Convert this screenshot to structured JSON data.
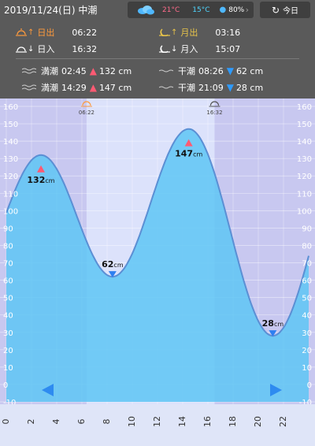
{
  "header": {
    "date": "2019/11/24(日)",
    "tide_type": "中潮",
    "today_label": "今日"
  },
  "weather": {
    "icon": "cloud-icon",
    "temp_high": "21°C",
    "temp_low": "15°C",
    "humidity": "80%"
  },
  "sun": {
    "rise_label": "日出",
    "rise_time": "06:22",
    "set_label": "日入",
    "set_time": "16:32"
  },
  "moon": {
    "rise_label": "月出",
    "rise_time": "03:16",
    "set_label": "月入",
    "set_time": "15:07"
  },
  "tides": {
    "high_label": "満潮",
    "low_label": "干潮",
    "high": [
      {
        "time": "02:45",
        "level": "132 cm"
      },
      {
        "time": "14:29",
        "level": "147 cm"
      }
    ],
    "low": [
      {
        "time": "08:26",
        "level": "62 cm"
      },
      {
        "time": "21:09",
        "level": "28 cm"
      }
    ]
  },
  "chart_data": {
    "type": "area",
    "x_ticks": [
      0,
      2,
      4,
      6,
      8,
      10,
      12,
      14,
      16,
      18,
      20,
      22
    ],
    "xlim": [
      0,
      24
    ],
    "ylim": [
      -10,
      160
    ],
    "y_ticks": [
      -10,
      0,
      10,
      20,
      30,
      40,
      50,
      60,
      70,
      80,
      90,
      100,
      110,
      120,
      130,
      140,
      150,
      160
    ],
    "extrema": [
      {
        "kind": "high",
        "x": 2.75,
        "y": 132,
        "label_value": "132",
        "label_unit": "cm"
      },
      {
        "kind": "low",
        "x": 8.43,
        "y": 62,
        "label_value": "62",
        "label_unit": "cm"
      },
      {
        "kind": "high",
        "x": 14.48,
        "y": 147,
        "label_value": "147",
        "label_unit": "cm"
      },
      {
        "kind": "low",
        "x": 21.15,
        "y": 28,
        "label_value": "28",
        "label_unit": "cm"
      }
    ],
    "sun_events": [
      {
        "x": 6.37,
        "label": "06:22",
        "icon": "sunrise-icon"
      },
      {
        "x": 16.53,
        "label": "16:32",
        "icon": "sunset-icon"
      }
    ],
    "colors": {
      "night_bg": "#c8c8f0",
      "day_bg": "#dce2fb",
      "fill": "#5ec5f5",
      "line": "#5b8fd4",
      "high_marker": "#ff5a73",
      "low_marker": "#2e7ff0",
      "nav": "#2e8bf0"
    }
  }
}
